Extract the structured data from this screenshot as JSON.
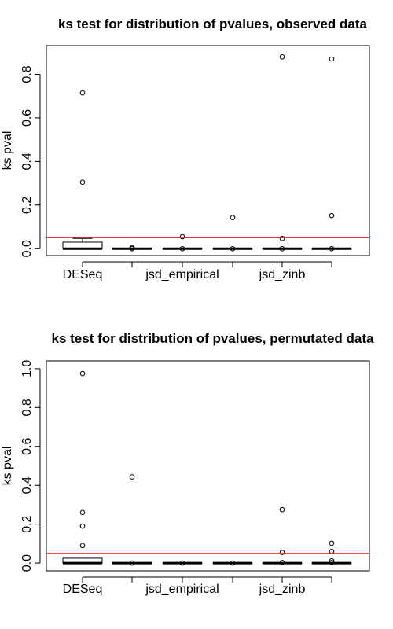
{
  "chart_data": [
    {
      "type": "boxplot",
      "title": "ks test for distribution of pvalues, observed data",
      "xlabel": "",
      "ylabel": "ks pval",
      "ylim": [
        0,
        0.9
      ],
      "yticks": [
        "0.0",
        "0.2",
        "0.4",
        "0.6",
        "0.8"
      ],
      "categories_labeled": [
        "DESeq",
        "jsd_empirical",
        "jsd_zinb"
      ],
      "reference_line": {
        "y": 0.05,
        "color": "#e41a1c"
      },
      "grid": false,
      "legend": "none",
      "boxes": [
        {
          "group": 1,
          "label": "DESeq",
          "q1": 0.0,
          "median": 0.0,
          "q3": 0.03,
          "whisker_low": 0.0,
          "whisker_high": 0.047,
          "outliers": [
            0.305,
            0.715
          ]
        },
        {
          "group": 2,
          "label": "",
          "q1": 0.0,
          "median": 0.0,
          "q3": 0.0,
          "whisker_low": 0.0,
          "whisker_high": 0.0,
          "outliers": [
            0.0,
            0.005
          ]
        },
        {
          "group": 3,
          "label": "jsd_empirical",
          "q1": 0.0,
          "median": 0.0,
          "q3": 0.0,
          "whisker_low": 0.0,
          "whisker_high": 0.0,
          "outliers": [
            0.0,
            0.055
          ]
        },
        {
          "group": 4,
          "label": "",
          "q1": 0.0,
          "median": 0.0,
          "q3": 0.0,
          "whisker_low": 0.0,
          "whisker_high": 0.0,
          "outliers": [
            0.0,
            0.143
          ]
        },
        {
          "group": 5,
          "label": "jsd_zinb",
          "q1": 0.0,
          "median": 0.0,
          "q3": 0.0,
          "whisker_low": 0.0,
          "whisker_high": 0.0,
          "outliers": [
            0.0,
            0.047,
            0.88
          ]
        },
        {
          "group": 6,
          "label": "",
          "q1": 0.0,
          "median": 0.0,
          "q3": 0.0,
          "whisker_low": 0.0,
          "whisker_high": 0.0,
          "outliers": [
            0.0,
            0.152,
            0.87
          ]
        }
      ]
    },
    {
      "type": "boxplot",
      "title": "ks test for distribution of pvalues, permutated data",
      "xlabel": "",
      "ylabel": "ks pval",
      "ylim": [
        0,
        1.0
      ],
      "yticks": [
        "0.0",
        "0.2",
        "0.4",
        "0.6",
        "0.8",
        "1.0"
      ],
      "categories_labeled": [
        "DESeq",
        "jsd_empirical",
        "jsd_zinb"
      ],
      "reference_line": {
        "y": 0.05,
        "color": "#e41a1c"
      },
      "grid": false,
      "legend": "none",
      "boxes": [
        {
          "group": 1,
          "label": "DESeq",
          "q1": 0.0,
          "median": 0.0,
          "q3": 0.025,
          "whisker_low": 0.0,
          "whisker_high": 0.025,
          "outliers": [
            0.09,
            0.19,
            0.26,
            0.975
          ]
        },
        {
          "group": 2,
          "label": "",
          "q1": 0.0,
          "median": 0.0,
          "q3": 0.0,
          "whisker_low": 0.0,
          "whisker_high": 0.0,
          "outliers": [
            0.0,
            0.443
          ]
        },
        {
          "group": 3,
          "label": "jsd_empirical",
          "q1": 0.0,
          "median": 0.0,
          "q3": 0.0,
          "whisker_low": 0.0,
          "whisker_high": 0.0,
          "outliers": [
            0.0
          ]
        },
        {
          "group": 4,
          "label": "",
          "q1": 0.0,
          "median": 0.0,
          "q3": 0.0,
          "whisker_low": 0.0,
          "whisker_high": 0.0,
          "outliers": [
            0.0
          ]
        },
        {
          "group": 5,
          "label": "jsd_zinb",
          "q1": 0.0,
          "median": 0.0,
          "q3": 0.0,
          "whisker_low": 0.0,
          "whisker_high": 0.0,
          "outliers": [
            0.003,
            0.055,
            0.275
          ]
        },
        {
          "group": 6,
          "label": "",
          "q1": 0.0,
          "median": 0.0,
          "q3": 0.0,
          "whisker_low": 0.0,
          "whisker_high": 0.0,
          "outliers": [
            0.003,
            0.012,
            0.06,
            0.102
          ]
        }
      ]
    }
  ]
}
